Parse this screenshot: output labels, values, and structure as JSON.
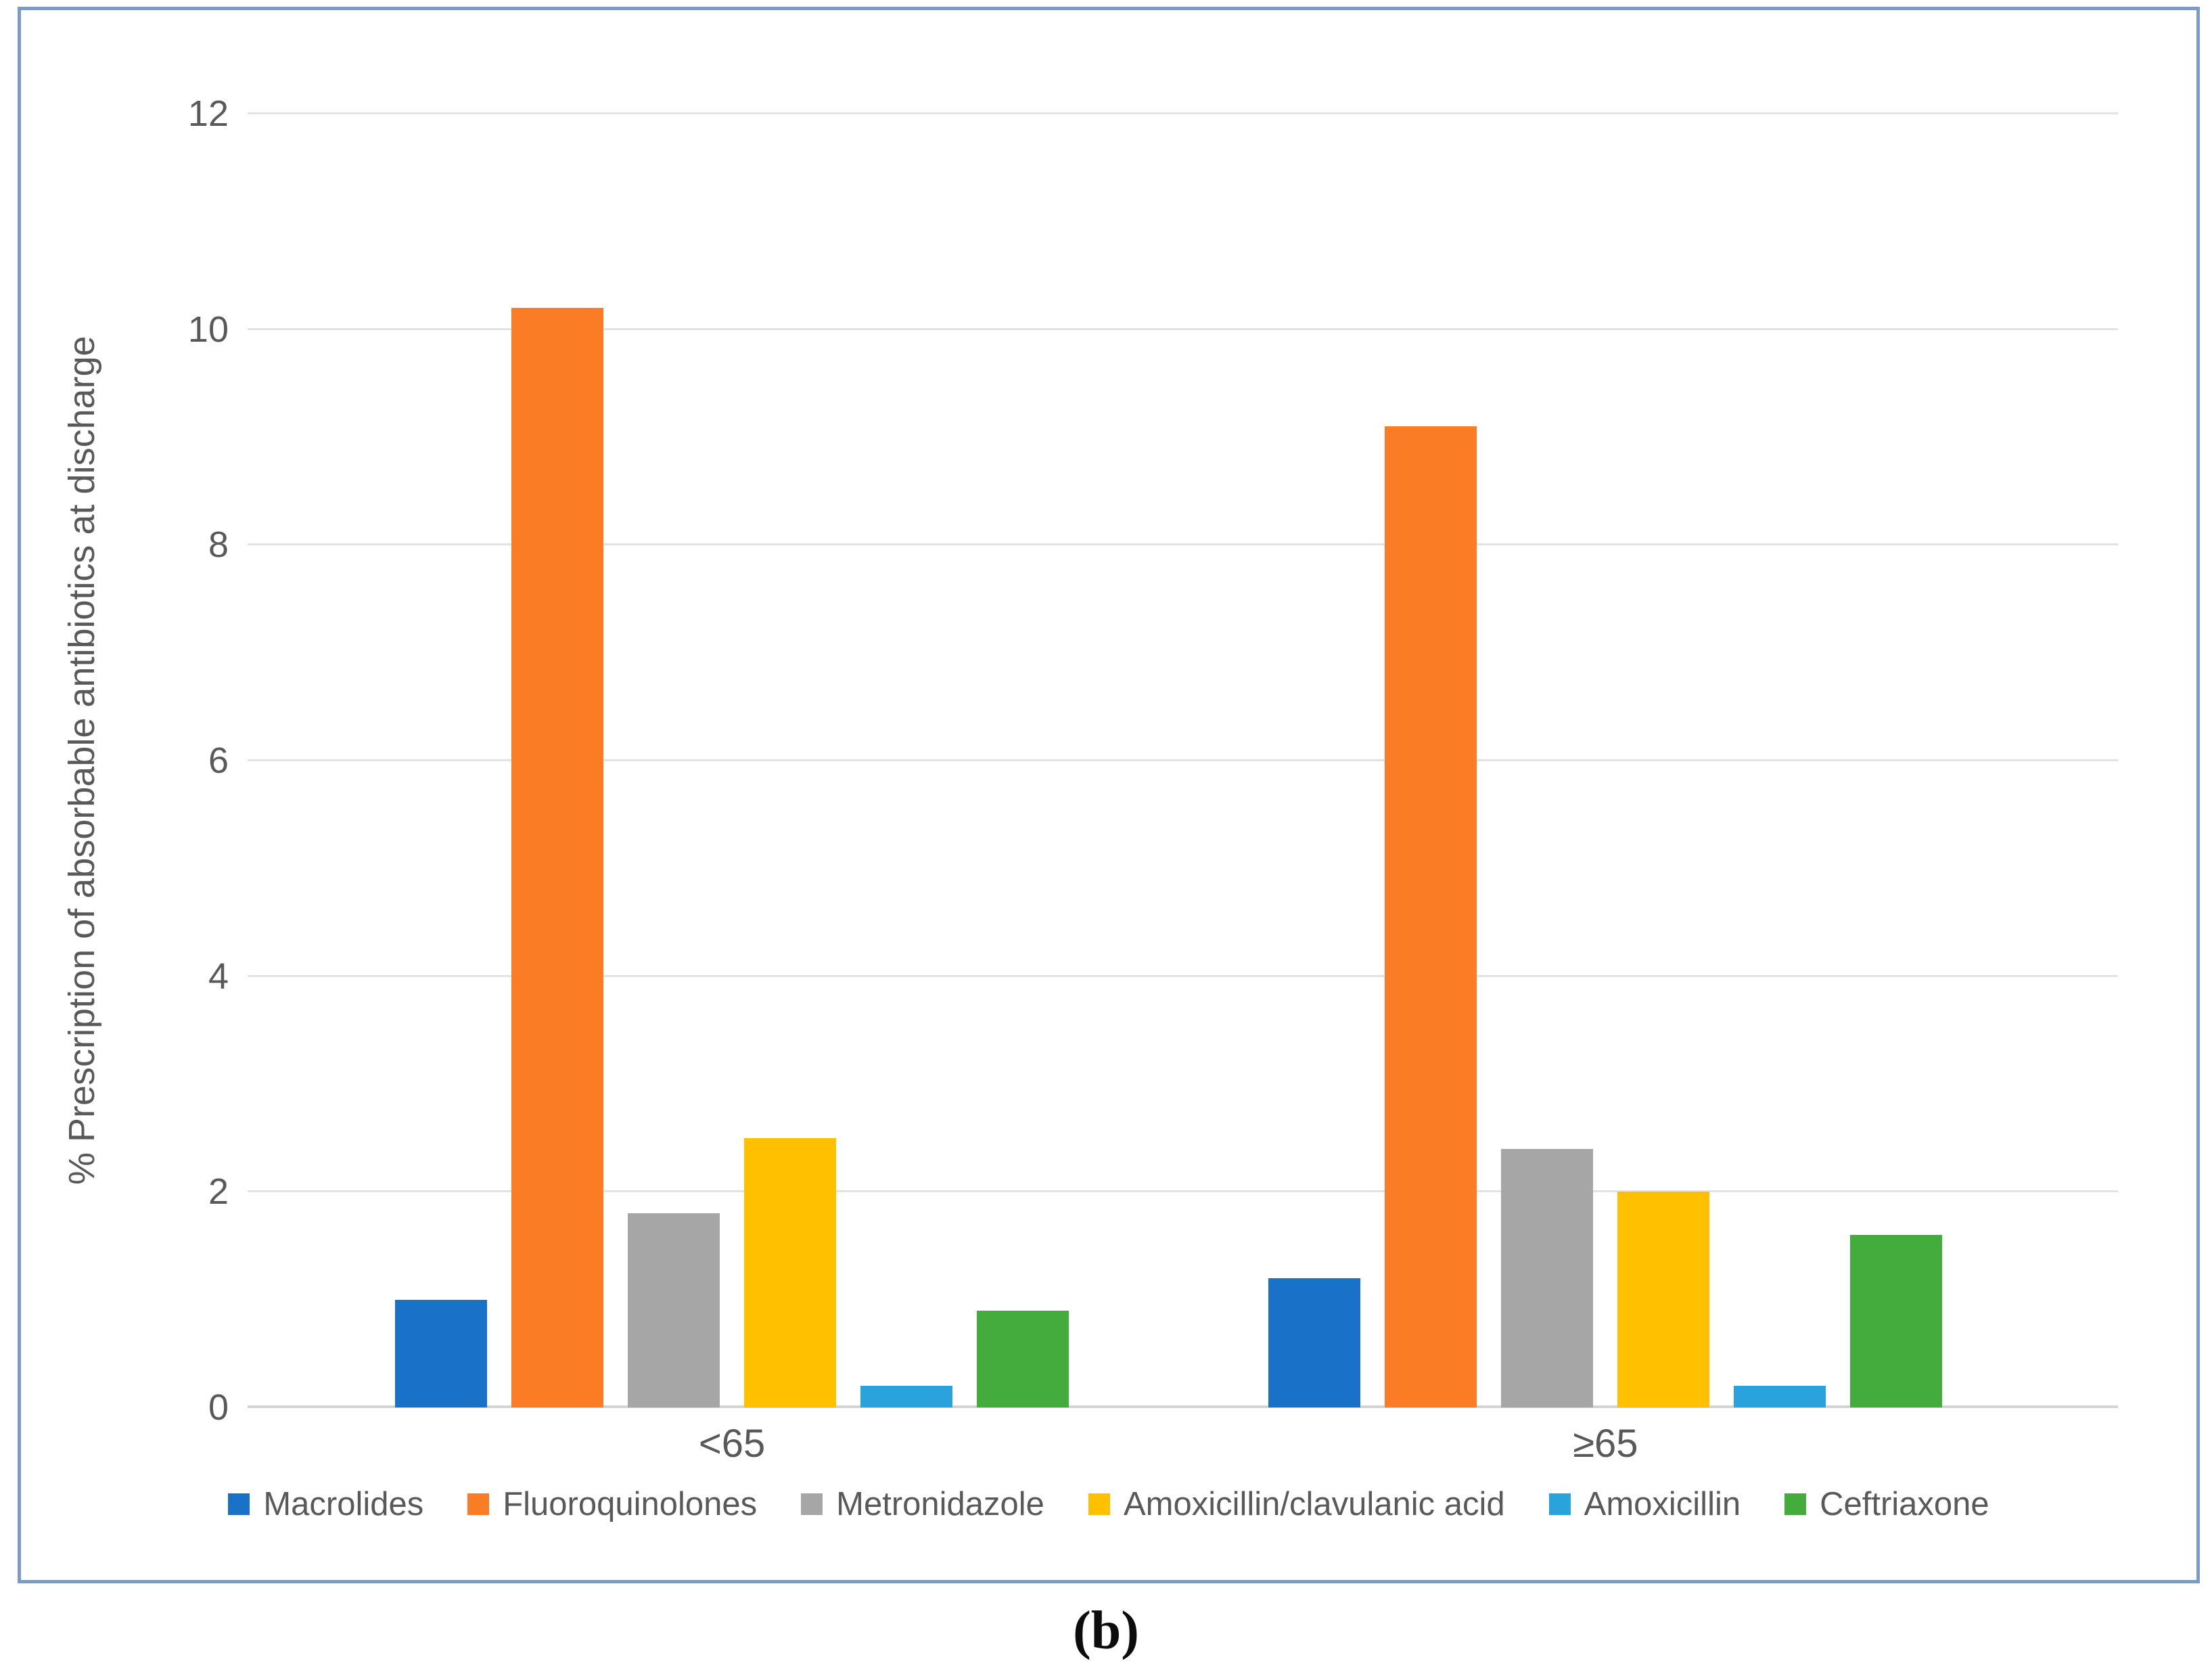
{
  "figure": {
    "caption": "(b)"
  },
  "chart_data": {
    "type": "bar",
    "title": "",
    "xlabel": "",
    "ylabel": "% Prescription of absorbable antibiotics at discharge",
    "ylim": [
      0,
      12
    ],
    "yticks": [
      0,
      2,
      4,
      6,
      8,
      10,
      12
    ],
    "grid": true,
    "legend_position": "bottom",
    "categories": [
      "<65",
      "≥65"
    ],
    "series": [
      {
        "name": "Macrolides",
        "color": "#1A72C8",
        "values": [
          1.0,
          1.2
        ]
      },
      {
        "name": "Fluoroquinolones",
        "color": "#FA7D26",
        "values": [
          10.2,
          9.1
        ]
      },
      {
        "name": "Metronidazole",
        "color": "#A6A6A6",
        "values": [
          1.8,
          2.4
        ]
      },
      {
        "name": "Amoxicillin/clavulanic acid",
        "color": "#FFC000",
        "values": [
          2.5,
          2.0
        ]
      },
      {
        "name": "Amoxicillin",
        "color": "#2AA2DC",
        "values": [
          0.2,
          0.2
        ]
      },
      {
        "name": "Ceftriaxone",
        "color": "#43AC3C",
        "values": [
          0.9,
          1.6
        ]
      }
    ],
    "colors": {
      "text": "#595959",
      "gridline": "#E2E2E2",
      "axis_line": "#D4D4D4",
      "chart_border": "#7C9AC6"
    },
    "category_centers_pct": [
      25.9,
      72.6
    ]
  }
}
